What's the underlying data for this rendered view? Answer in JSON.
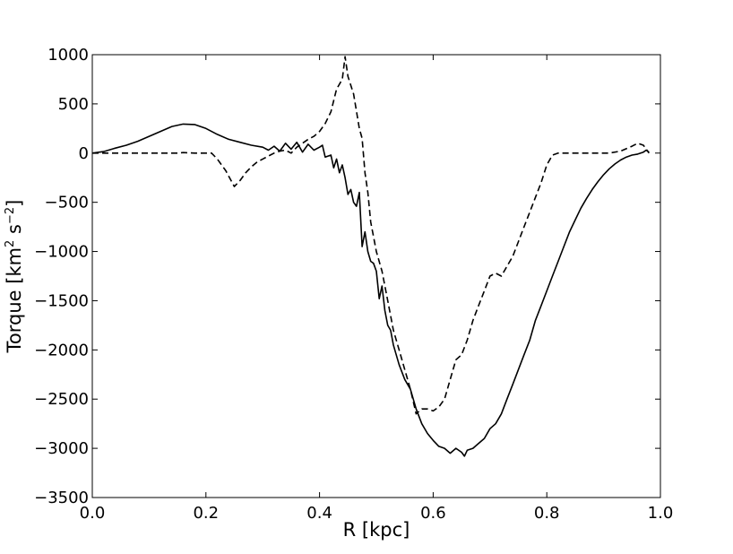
{
  "chart_data": {
    "type": "line",
    "title": "",
    "xlabel": "R [kpc]",
    "ylabel": "Torque [km",
    "ylabel_sup1": "2",
    "ylabel_mid": " s",
    "ylabel_sup2": "−2",
    "ylabel_end": "]",
    "xlim": [
      0.0,
      1.0
    ],
    "ylim": [
      -3500,
      1000
    ],
    "xticks": [
      0.0,
      0.2,
      0.4,
      0.6,
      0.8,
      1.0
    ],
    "xtick_labels": [
      "0.0",
      "0.2",
      "0.4",
      "0.6",
      "0.8",
      "1.0"
    ],
    "yticks": [
      1000,
      500,
      0,
      -500,
      -1000,
      -1500,
      -2000,
      -2500,
      -3000,
      -3500
    ],
    "ytick_labels": [
      "1000",
      "500",
      "0",
      "−500",
      "−1000",
      "−1500",
      "−2000",
      "−2500",
      "−3000",
      "−3500"
    ],
    "grid": false,
    "series": [
      {
        "style": "solid",
        "color": "#000000",
        "points": [
          [
            0.0,
            0
          ],
          [
            0.02,
            15
          ],
          [
            0.04,
            50
          ],
          [
            0.06,
            80
          ],
          [
            0.08,
            120
          ],
          [
            0.1,
            170
          ],
          [
            0.12,
            220
          ],
          [
            0.14,
            270
          ],
          [
            0.16,
            295
          ],
          [
            0.18,
            290
          ],
          [
            0.2,
            250
          ],
          [
            0.22,
            190
          ],
          [
            0.24,
            140
          ],
          [
            0.26,
            110
          ],
          [
            0.28,
            80
          ],
          [
            0.3,
            60
          ],
          [
            0.31,
            30
          ],
          [
            0.32,
            70
          ],
          [
            0.33,
            20
          ],
          [
            0.34,
            100
          ],
          [
            0.35,
            40
          ],
          [
            0.36,
            110
          ],
          [
            0.37,
            10
          ],
          [
            0.38,
            90
          ],
          [
            0.39,
            30
          ],
          [
            0.4,
            60
          ],
          [
            0.405,
            80
          ],
          [
            0.41,
            -40
          ],
          [
            0.42,
            -20
          ],
          [
            0.425,
            -150
          ],
          [
            0.43,
            -60
          ],
          [
            0.435,
            -200
          ],
          [
            0.44,
            -120
          ],
          [
            0.445,
            -250
          ],
          [
            0.45,
            -420
          ],
          [
            0.455,
            -370
          ],
          [
            0.46,
            -500
          ],
          [
            0.465,
            -540
          ],
          [
            0.47,
            -400
          ],
          [
            0.475,
            -950
          ],
          [
            0.48,
            -800
          ],
          [
            0.485,
            -1000
          ],
          [
            0.49,
            -1100
          ],
          [
            0.495,
            -1120
          ],
          [
            0.5,
            -1200
          ],
          [
            0.505,
            -1480
          ],
          [
            0.51,
            -1350
          ],
          [
            0.515,
            -1600
          ],
          [
            0.52,
            -1750
          ],
          [
            0.525,
            -1800
          ],
          [
            0.53,
            -1950
          ],
          [
            0.535,
            -2050
          ],
          [
            0.54,
            -2150
          ],
          [
            0.55,
            -2300
          ],
          [
            0.56,
            -2400
          ],
          [
            0.57,
            -2600
          ],
          [
            0.58,
            -2750
          ],
          [
            0.59,
            -2850
          ],
          [
            0.6,
            -2920
          ],
          [
            0.61,
            -2980
          ],
          [
            0.62,
            -3000
          ],
          [
            0.63,
            -3050
          ],
          [
            0.64,
            -3000
          ],
          [
            0.65,
            -3040
          ],
          [
            0.655,
            -3080
          ],
          [
            0.66,
            -3020
          ],
          [
            0.67,
            -3000
          ],
          [
            0.68,
            -2950
          ],
          [
            0.69,
            -2900
          ],
          [
            0.7,
            -2800
          ],
          [
            0.71,
            -2750
          ],
          [
            0.72,
            -2650
          ],
          [
            0.73,
            -2500
          ],
          [
            0.74,
            -2350
          ],
          [
            0.75,
            -2200
          ],
          [
            0.76,
            -2050
          ],
          [
            0.77,
            -1900
          ],
          [
            0.78,
            -1700
          ],
          [
            0.79,
            -1550
          ],
          [
            0.8,
            -1400
          ],
          [
            0.81,
            -1250
          ],
          [
            0.82,
            -1100
          ],
          [
            0.83,
            -950
          ],
          [
            0.84,
            -800
          ],
          [
            0.85,
            -680
          ],
          [
            0.86,
            -560
          ],
          [
            0.87,
            -460
          ],
          [
            0.88,
            -370
          ],
          [
            0.89,
            -290
          ],
          [
            0.9,
            -220
          ],
          [
            0.91,
            -160
          ],
          [
            0.92,
            -110
          ],
          [
            0.93,
            -70
          ],
          [
            0.94,
            -40
          ],
          [
            0.95,
            -20
          ],
          [
            0.96,
            -10
          ],
          [
            0.97,
            10
          ],
          [
            0.975,
            30
          ],
          [
            0.98,
            10
          ]
        ]
      },
      {
        "style": "dashed",
        "color": "#000000",
        "points": [
          [
            0.0,
            0
          ],
          [
            0.05,
            0
          ],
          [
            0.1,
            0
          ],
          [
            0.15,
            0
          ],
          [
            0.16,
            5
          ],
          [
            0.18,
            0
          ],
          [
            0.2,
            0
          ],
          [
            0.21,
            0
          ],
          [
            0.22,
            -60
          ],
          [
            0.235,
            -180
          ],
          [
            0.25,
            -340
          ],
          [
            0.26,
            -280
          ],
          [
            0.27,
            -200
          ],
          [
            0.28,
            -140
          ],
          [
            0.29,
            -90
          ],
          [
            0.3,
            -60
          ],
          [
            0.31,
            -30
          ],
          [
            0.32,
            0
          ],
          [
            0.33,
            20
          ],
          [
            0.34,
            30
          ],
          [
            0.35,
            0
          ],
          [
            0.36,
            60
          ],
          [
            0.37,
            100
          ],
          [
            0.38,
            140
          ],
          [
            0.39,
            170
          ],
          [
            0.4,
            220
          ],
          [
            0.41,
            300
          ],
          [
            0.42,
            420
          ],
          [
            0.43,
            650
          ],
          [
            0.44,
            750
          ],
          [
            0.445,
            980
          ],
          [
            0.45,
            780
          ],
          [
            0.46,
            600
          ],
          [
            0.47,
            250
          ],
          [
            0.475,
            150
          ],
          [
            0.48,
            -200
          ],
          [
            0.485,
            -400
          ],
          [
            0.49,
            -700
          ],
          [
            0.5,
            -1000
          ],
          [
            0.51,
            -1200
          ],
          [
            0.52,
            -1500
          ],
          [
            0.53,
            -1800
          ],
          [
            0.54,
            -2000
          ],
          [
            0.55,
            -2200
          ],
          [
            0.56,
            -2400
          ],
          [
            0.57,
            -2650
          ],
          [
            0.58,
            -2600
          ],
          [
            0.59,
            -2600
          ],
          [
            0.6,
            -2620
          ],
          [
            0.61,
            -2580
          ],
          [
            0.62,
            -2500
          ],
          [
            0.63,
            -2300
          ],
          [
            0.64,
            -2100
          ],
          [
            0.65,
            -2050
          ],
          [
            0.66,
            -1900
          ],
          [
            0.67,
            -1700
          ],
          [
            0.68,
            -1550
          ],
          [
            0.69,
            -1400
          ],
          [
            0.7,
            -1250
          ],
          [
            0.71,
            -1220
          ],
          [
            0.72,
            -1250
          ],
          [
            0.73,
            -1150
          ],
          [
            0.74,
            -1050
          ],
          [
            0.75,
            -900
          ],
          [
            0.76,
            -750
          ],
          [
            0.77,
            -600
          ],
          [
            0.78,
            -450
          ],
          [
            0.79,
            -300
          ],
          [
            0.8,
            -120
          ],
          [
            0.81,
            -20
          ],
          [
            0.82,
            0
          ],
          [
            0.85,
            0
          ],
          [
            0.88,
            0
          ],
          [
            0.91,
            0
          ],
          [
            0.93,
            20
          ],
          [
            0.95,
            70
          ],
          [
            0.96,
            100
          ],
          [
            0.97,
            80
          ],
          [
            0.98,
            0
          ]
        ]
      }
    ]
  }
}
